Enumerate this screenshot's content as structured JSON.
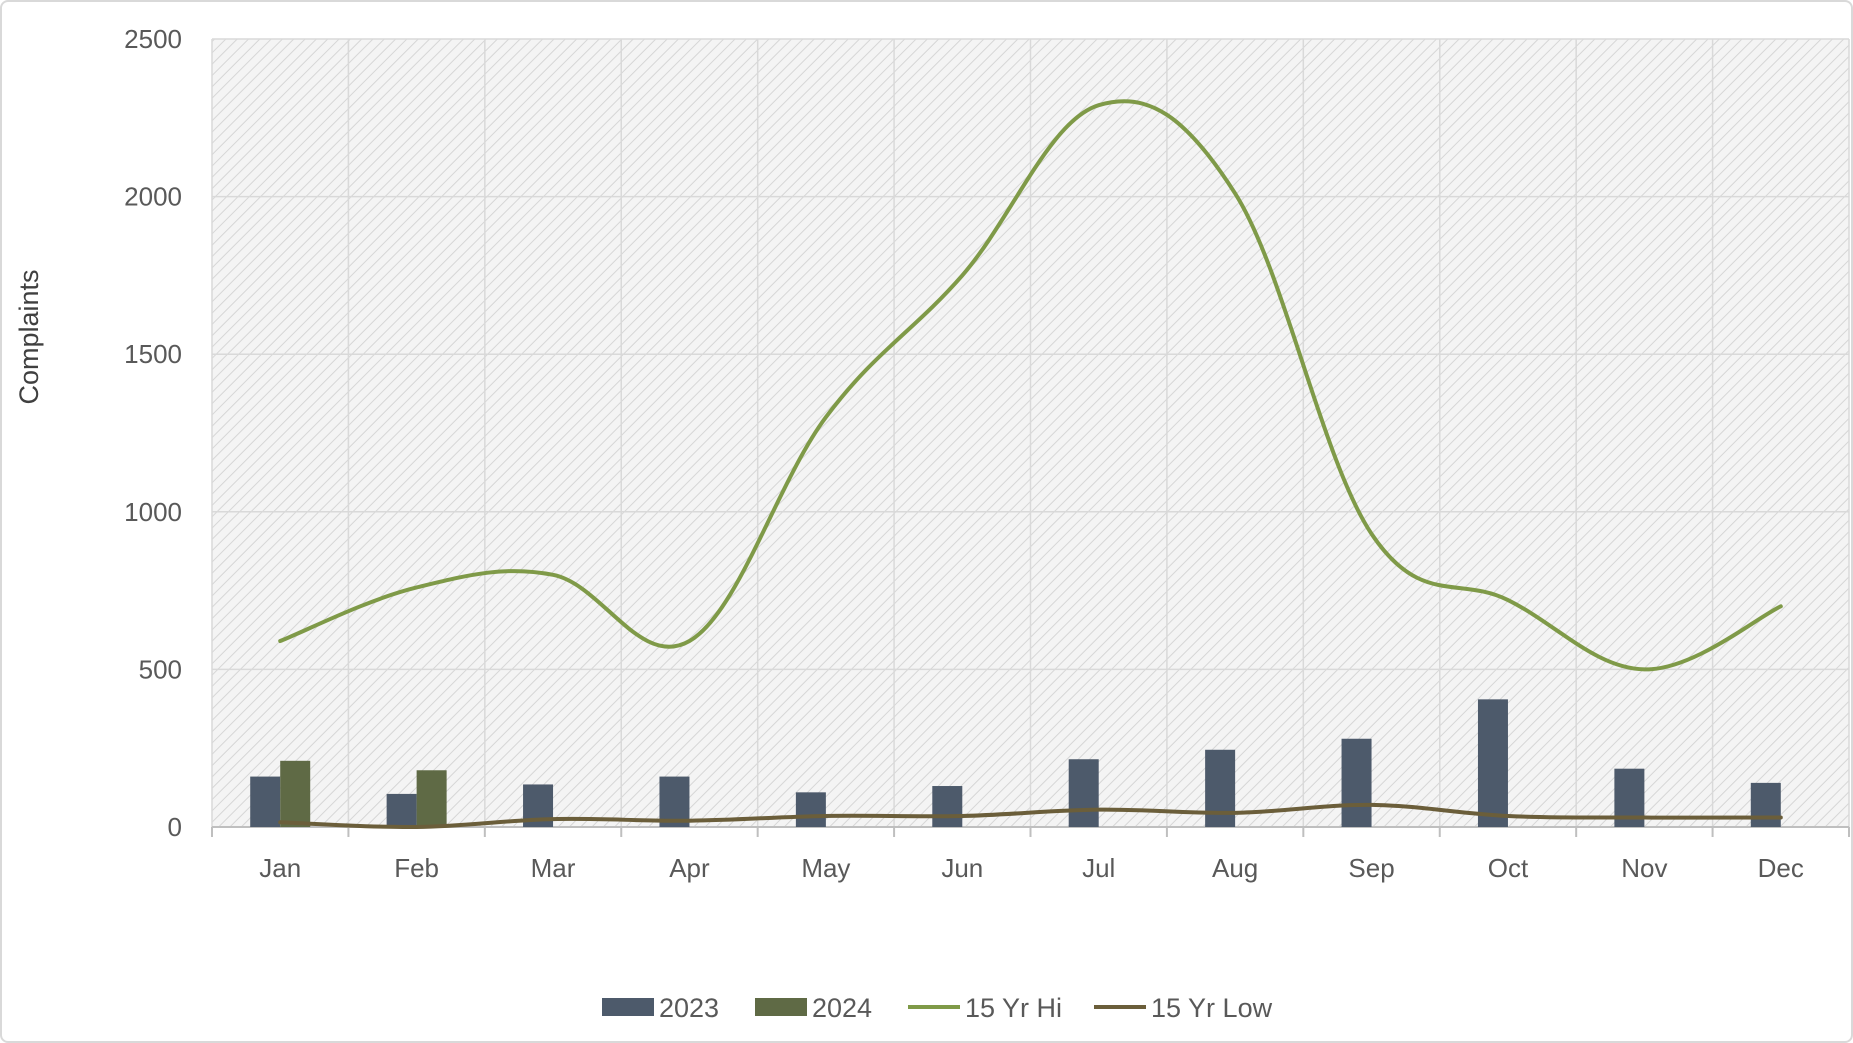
{
  "chart_data": {
    "type": "bar",
    "title": "",
    "xlabel": "",
    "ylabel": "Complaints",
    "categories": [
      "Jan",
      "Feb",
      "Mar",
      "Apr",
      "May",
      "Jun",
      "Jul",
      "Aug",
      "Sep",
      "Oct",
      "Nov",
      "Dec"
    ],
    "ylim": [
      0,
      2500
    ],
    "yticks": [
      0,
      500,
      1000,
      1500,
      2000,
      2500
    ],
    "grid": true,
    "legend_position": "bottom",
    "series": [
      {
        "name": "2023",
        "type": "bar",
        "color": "#4d5a6b",
        "values": [
          160,
          105,
          135,
          160,
          110,
          130,
          215,
          245,
          280,
          405,
          185,
          140
        ]
      },
      {
        "name": "2024",
        "type": "bar",
        "color": "#5f6a45",
        "values": [
          210,
          180,
          null,
          null,
          null,
          null,
          null,
          null,
          null,
          null,
          null,
          null
        ]
      },
      {
        "name": "15 Yr Hi",
        "type": "line",
        "smooth": true,
        "color": "#7f9a48",
        "values": [
          590,
          760,
          800,
          590,
          1300,
          1750,
          2290,
          2010,
          930,
          720,
          500,
          700
        ]
      },
      {
        "name": "15 Yr Low",
        "type": "line",
        "smooth": true,
        "color": "#6b5e3a",
        "values": [
          15,
          0,
          25,
          20,
          35,
          35,
          55,
          45,
          70,
          35,
          30,
          30
        ]
      }
    ]
  }
}
